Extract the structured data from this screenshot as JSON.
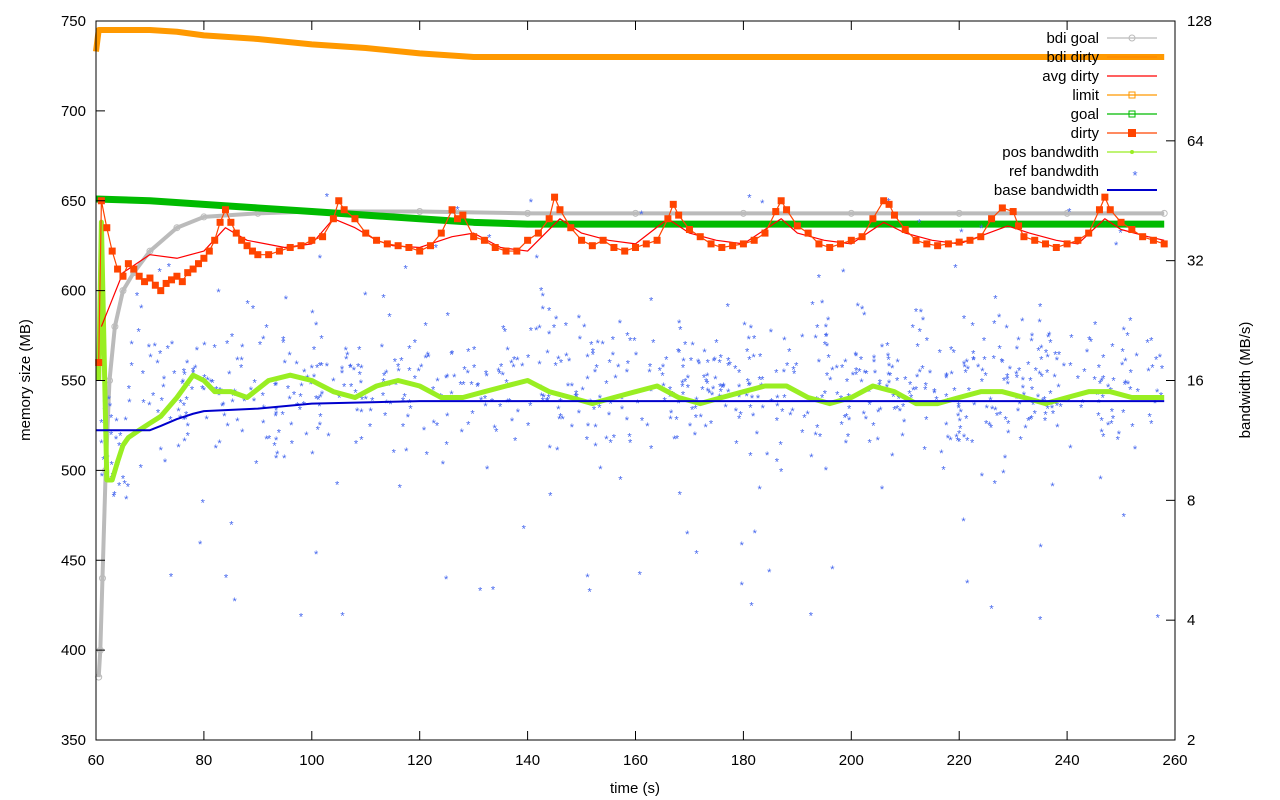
{
  "chart_data": {
    "type": "line",
    "xlabel": "time (s)",
    "ylabel": "memory size (MB)",
    "y2label": "bandwidth (MB/s)",
    "xlim": [
      60,
      260
    ],
    "ylim": [
      350,
      750
    ],
    "y2lim": [
      2,
      128
    ],
    "y2scale": "log2",
    "grid": false,
    "legend_position": "top-right",
    "x_ticks": [
      "60",
      "80",
      "100",
      "120",
      "140",
      "160",
      "180",
      "200",
      "220",
      "240",
      "260"
    ],
    "y_ticks": [
      "350",
      "400",
      "450",
      "500",
      "550",
      "600",
      "650",
      "700",
      "750"
    ],
    "y2_ticks": [
      "2",
      "4",
      "8",
      "16",
      "32",
      "64",
      "128"
    ],
    "series": [
      {
        "name": "bdi goal",
        "axis": "y",
        "color": "#bbbbbb",
        "marker": "circle",
        "x": [
          60.5,
          60.8,
          61.2,
          61.8,
          62.5,
          63.5,
          65,
          67,
          70,
          75,
          80,
          90,
          100,
          120,
          140,
          160,
          180,
          200,
          220,
          240,
          258
        ],
        "y": [
          385,
          400,
          440,
          500,
          550,
          580,
          600,
          610,
          622,
          635,
          641,
          643,
          644,
          644,
          643,
          643,
          643,
          643,
          643,
          643,
          643
        ]
      },
      {
        "name": "bdi dirty",
        "axis": "y",
        "color": "#ff8800",
        "marker": "none",
        "x": [
          60,
          260
        ],
        "y": [
          750,
          750
        ]
      },
      {
        "name": "avg dirty",
        "axis": "y",
        "color": "#ff0000",
        "marker": "none",
        "x": [
          61,
          65,
          70,
          75,
          80,
          84,
          88,
          95,
          100,
          104,
          108,
          112,
          115,
          120,
          126,
          130,
          135,
          140,
          146,
          150,
          155,
          160,
          166,
          170,
          175,
          180,
          187,
          190,
          195,
          200,
          206,
          210,
          215,
          220,
          229,
          233,
          238,
          242,
          247,
          250,
          255,
          258
        ],
        "y": [
          580,
          610,
          620,
          618,
          622,
          635,
          628,
          624,
          626,
          640,
          635,
          628,
          625,
          624,
          630,
          632,
          624,
          622,
          640,
          632,
          628,
          626,
          640,
          632,
          628,
          626,
          640,
          632,
          628,
          626,
          638,
          632,
          628,
          626,
          636,
          632,
          628,
          626,
          640,
          634,
          630,
          628
        ]
      },
      {
        "name": "limit",
        "axis": "y",
        "color": "#ff9900",
        "marker": "square",
        "x": [
          60,
          60.5,
          61,
          62,
          70,
          75,
          80,
          90,
          100,
          110,
          120,
          130,
          140,
          160,
          180,
          200,
          220,
          240,
          258
        ],
        "y": [
          733,
          745,
          745,
          745,
          745,
          744,
          742,
          740,
          737,
          735,
          732,
          730,
          730,
          730,
          730,
          730,
          730,
          730,
          730
        ]
      },
      {
        "name": "goal",
        "axis": "y",
        "color": "#00bb00",
        "marker": "square",
        "x": [
          60,
          70,
          80,
          90,
          100,
          110,
          120,
          130,
          140,
          150,
          160,
          180,
          200,
          220,
          240,
          258
        ],
        "y": [
          651,
          650,
          648,
          646,
          644,
          642,
          640,
          638,
          637,
          637,
          637,
          637,
          637,
          637,
          637,
          637
        ]
      },
      {
        "name": "dirty",
        "axis": "y",
        "color": "#ff4400",
        "marker": "square",
        "x": [
          60.5,
          61,
          62,
          63,
          64,
          65,
          66,
          67,
          68,
          69,
          70,
          71,
          72,
          73,
          74,
          75,
          76,
          77,
          78,
          79,
          80,
          81,
          82,
          83,
          84,
          85,
          86,
          87,
          88,
          89,
          90,
          92,
          94,
          96,
          98,
          100,
          102,
          104,
          105,
          106,
          108,
          110,
          112,
          114,
          116,
          118,
          120,
          122,
          124,
          126,
          127,
          128,
          130,
          132,
          134,
          136,
          138,
          140,
          142,
          144,
          145,
          146,
          148,
          150,
          152,
          154,
          156,
          158,
          160,
          162,
          164,
          166,
          167,
          168,
          170,
          172,
          174,
          176,
          178,
          180,
          182,
          184,
          186,
          187,
          188,
          190,
          192,
          194,
          196,
          198,
          200,
          202,
          204,
          206,
          207,
          208,
          210,
          212,
          214,
          216,
          218,
          220,
          222,
          224,
          226,
          228,
          230,
          231,
          232,
          234,
          236,
          238,
          240,
          242,
          244,
          246,
          247,
          248,
          250,
          252,
          254,
          256,
          258
        ],
        "y": [
          560,
          650,
          635,
          622,
          612,
          608,
          615,
          612,
          608,
          605,
          607,
          603,
          600,
          604,
          606,
          608,
          605,
          610,
          612,
          615,
          618,
          622,
          628,
          638,
          645,
          638,
          632,
          628,
          625,
          622,
          620,
          620,
          622,
          624,
          625,
          628,
          630,
          640,
          650,
          645,
          640,
          632,
          628,
          626,
          625,
          624,
          622,
          625,
          632,
          645,
          640,
          642,
          630,
          628,
          624,
          622,
          622,
          628,
          632,
          640,
          652,
          645,
          635,
          628,
          625,
          628,
          624,
          622,
          624,
          626,
          628,
          640,
          648,
          642,
          634,
          630,
          626,
          624,
          625,
          626,
          628,
          632,
          644,
          650,
          645,
          636,
          632,
          626,
          624,
          626,
          628,
          630,
          640,
          650,
          648,
          642,
          634,
          628,
          626,
          625,
          626,
          627,
          628,
          630,
          640,
          646,
          644,
          636,
          630,
          628,
          626,
          624,
          626,
          628,
          632,
          645,
          652,
          645,
          638,
          634,
          630,
          628,
          626
        ]
      },
      {
        "name": "pos bandwdith",
        "axis": "y2",
        "color": "#99ee22",
        "marker": "point",
        "x": [
          60.5,
          61,
          62,
          63,
          64,
          65,
          66,
          68,
          70,
          72,
          75,
          78,
          80,
          82,
          85,
          88,
          92,
          96,
          100,
          104,
          108,
          112,
          116,
          120,
          124,
          128,
          132,
          136,
          140,
          144,
          148,
          152,
          156,
          160,
          164,
          168,
          172,
          176,
          180,
          184,
          188,
          192,
          196,
          200,
          204,
          208,
          212,
          216,
          220,
          224,
          228,
          232,
          236,
          240,
          244,
          248,
          252,
          256,
          258
        ],
        "y": [
          16,
          40,
          9,
          9,
          10,
          11,
          11.5,
          12,
          12.5,
          13,
          14.5,
          16.5,
          16,
          15,
          15,
          14.5,
          16,
          16.5,
          16,
          15,
          14.5,
          15.5,
          16,
          15.5,
          14.5,
          14.5,
          15,
          15.5,
          16,
          15,
          14.5,
          14,
          14.5,
          15,
          15.5,
          14.5,
          14,
          14.5,
          15,
          15.5,
          15.5,
          14.5,
          14,
          14.5,
          15.5,
          15,
          14,
          14,
          14.5,
          15,
          15,
          14.5,
          14,
          14.5,
          15,
          15,
          14.5,
          14.5,
          14.5
        ]
      },
      {
        "name": "ref bandwdith",
        "axis": "y2",
        "color": "#4466ee",
        "marker": "star",
        "scatter": true,
        "x": [],
        "y": []
      },
      {
        "name": "base bandwidth",
        "axis": "y2",
        "color": "#0000cc",
        "marker": "none",
        "x": [
          60,
          65,
          70,
          72,
          75,
          78,
          80,
          85,
          90,
          95,
          100,
          110,
          120,
          130,
          140,
          160,
          180,
          200,
          220,
          240,
          258
        ],
        "y": [
          12,
          12,
          12,
          12.3,
          12.8,
          13.2,
          13.4,
          13.5,
          13.6,
          13.8,
          14,
          14.1,
          14.2,
          14.2,
          14.2,
          14.2,
          14.2,
          14.2,
          14.2,
          14.2,
          14.2
        ]
      }
    ]
  }
}
